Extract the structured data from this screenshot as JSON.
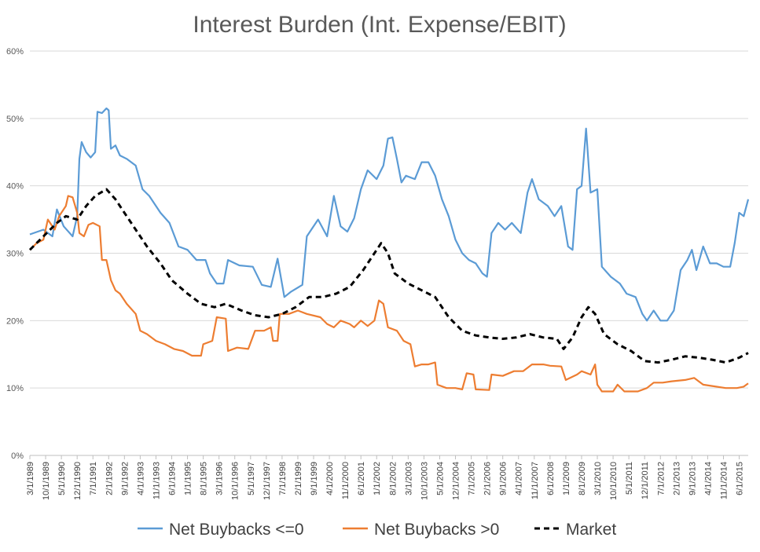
{
  "chart_data": {
    "type": "line",
    "title": "Interest Burden (Int. Expense/EBIT)",
    "xlabel": "",
    "ylabel": "",
    "ylim": [
      0,
      60
    ],
    "y_ticks": [
      "0%",
      "10%",
      "20%",
      "30%",
      "40%",
      "50%",
      "60%"
    ],
    "y_tick_values": [
      0,
      10,
      20,
      30,
      40,
      50,
      60
    ],
    "x_ticks": [
      "3/1/1989",
      "10/1/1989",
      "5/1/1990",
      "12/1/1990",
      "7/1/1991",
      "2/1/1992",
      "9/1/1992",
      "4/1/1993",
      "11/1/1993",
      "6/1/1994",
      "1/1/1995",
      "8/1/1995",
      "3/1/1996",
      "10/1/1996",
      "5/1/1997",
      "12/1/1997",
      "7/1/1998",
      "2/1/1999",
      "9/1/1999",
      "4/1/2000",
      "11/1/2000",
      "6/1/2001",
      "1/1/2002",
      "8/1/2002",
      "3/1/2003",
      "10/1/2003",
      "5/1/2004",
      "12/1/2004",
      "7/1/2005",
      "2/1/2006",
      "9/1/2006",
      "4/1/2007",
      "11/1/2007",
      "6/1/2008",
      "1/1/2009",
      "8/1/2009",
      "3/1/2010",
      "10/1/2010",
      "5/1/2011",
      "12/1/2011",
      "7/1/2012",
      "2/1/2013",
      "9/1/2013",
      "4/1/2014",
      "11/1/2014",
      "6/1/2015"
    ],
    "x_range": [
      "3/1/1989",
      "10/1/2015"
    ],
    "grid": "horizontal",
    "legend_position": "bottom",
    "series": [
      {
        "name": "Net Buybacks <=0",
        "color": "#5B9BD5",
        "dash": "solid",
        "points": [
          [
            "3/1/1989",
            32.8
          ],
          [
            "9/1/1989",
            33.5
          ],
          [
            "1/1/1990",
            32.5
          ],
          [
            "3/1/1990",
            36.5
          ],
          [
            "6/1/1990",
            34
          ],
          [
            "10/1/1990",
            32.5
          ],
          [
            "12/1/1990",
            35.5
          ],
          [
            "1/1/1991",
            44
          ],
          [
            "2/1/1991",
            46.5
          ],
          [
            "4/1/1991",
            45
          ],
          [
            "6/1/1991",
            44.2
          ],
          [
            "8/1/1991",
            45
          ],
          [
            "9/1/1991",
            51
          ],
          [
            "11/1/1991",
            50.8
          ],
          [
            "1/1/1992",
            51.5
          ],
          [
            "2/1/1992",
            51.2
          ],
          [
            "3/1/1992",
            45.5
          ],
          [
            "5/1/1992",
            46
          ],
          [
            "7/1/1992",
            44.5
          ],
          [
            "10/1/1992",
            44
          ],
          [
            "2/1/1993",
            43
          ],
          [
            "5/1/1993",
            39.5
          ],
          [
            "8/1/1993",
            38.5
          ],
          [
            "1/1/1994",
            36
          ],
          [
            "5/1/1994",
            34.5
          ],
          [
            "9/1/1994",
            31
          ],
          [
            "1/1/1995",
            30.5
          ],
          [
            "5/1/1995",
            29
          ],
          [
            "9/1/1995",
            29
          ],
          [
            "11/1/1995",
            27
          ],
          [
            "2/1/1996",
            25.5
          ],
          [
            "5/1/1996",
            25.5
          ],
          [
            "7/1/1996",
            29
          ],
          [
            "12/1/1996",
            28.2
          ],
          [
            "6/1/1997",
            28
          ],
          [
            "10/1/1997",
            25.3
          ],
          [
            "2/1/1998",
            25
          ],
          [
            "5/1/1998",
            29.2
          ],
          [
            "8/1/1998",
            23.5
          ],
          [
            "11/1/1998",
            24.3
          ],
          [
            "4/1/1999",
            25.3
          ],
          [
            "6/1/1999",
            32.5
          ],
          [
            "11/1/1999",
            35
          ],
          [
            "3/1/2000",
            32.5
          ],
          [
            "6/1/2000",
            38.5
          ],
          [
            "9/1/2000",
            34
          ],
          [
            "12/1/2000",
            33.2
          ],
          [
            "3/1/2001",
            35.2
          ],
          [
            "6/1/2001",
            39.5
          ],
          [
            "9/1/2001",
            42.3
          ],
          [
            "1/1/2002",
            41
          ],
          [
            "4/1/2002",
            43
          ],
          [
            "6/1/2002",
            47
          ],
          [
            "8/1/2002",
            47.2
          ],
          [
            "10/1/2002",
            44
          ],
          [
            "12/1/2002",
            40.5
          ],
          [
            "2/1/2003",
            41.5
          ],
          [
            "6/1/2003",
            41
          ],
          [
            "9/1/2003",
            43.5
          ],
          [
            "12/1/2003",
            43.5
          ],
          [
            "3/1/2004",
            41.5
          ],
          [
            "6/1/2004",
            38
          ],
          [
            "9/1/2004",
            35.5
          ],
          [
            "12/1/2004",
            32
          ],
          [
            "3/1/2005",
            30
          ],
          [
            "6/1/2005",
            29
          ],
          [
            "9/1/2005",
            28.5
          ],
          [
            "12/1/2005",
            27
          ],
          [
            "2/1/2006",
            26.5
          ],
          [
            "4/1/2006",
            33
          ],
          [
            "7/1/2006",
            34.5
          ],
          [
            "10/1/2006",
            33.5
          ],
          [
            "1/1/2007",
            34.5
          ],
          [
            "5/1/2007",
            33
          ],
          [
            "8/1/2007",
            39
          ],
          [
            "10/1/2007",
            41
          ],
          [
            "1/1/2008",
            38
          ],
          [
            "5/1/2008",
            37
          ],
          [
            "8/1/2008",
            35.5
          ],
          [
            "11/1/2008",
            37
          ],
          [
            "2/1/2009",
            31
          ],
          [
            "4/1/2009",
            30.5
          ],
          [
            "6/1/2009",
            39.5
          ],
          [
            "8/1/2009",
            40
          ],
          [
            "10/1/2009",
            48.5
          ],
          [
            "12/1/2009",
            39
          ],
          [
            "3/1/2010",
            39.5
          ],
          [
            "5/1/2010",
            28
          ],
          [
            "9/1/2010",
            26.5
          ],
          [
            "1/1/2011",
            25.5
          ],
          [
            "4/1/2011",
            24
          ],
          [
            "8/1/2011",
            23.5
          ],
          [
            "11/1/2011",
            21
          ],
          [
            "1/1/2012",
            20
          ],
          [
            "4/1/2012",
            21.5
          ],
          [
            "7/1/2012",
            20
          ],
          [
            "10/1/2012",
            20
          ],
          [
            "1/1/2013",
            21.5
          ],
          [
            "4/1/2013",
            27.5
          ],
          [
            "7/1/2013",
            29
          ],
          [
            "9/1/2013",
            30.5
          ],
          [
            "11/1/2013",
            27.5
          ],
          [
            "2/1/2014",
            31
          ],
          [
            "5/1/2014",
            28.5
          ],
          [
            "8/1/2014",
            28.5
          ],
          [
            "11/1/2014",
            28
          ],
          [
            "2/1/2015",
            28
          ],
          [
            "4/1/2015",
            31.5
          ],
          [
            "6/1/2015",
            36
          ],
          [
            "8/1/2015",
            35.5
          ],
          [
            "10/1/2015",
            38
          ]
        ]
      },
      {
        "name": "Net Buybacks >0",
        "color": "#ED7D31",
        "dash": "solid",
        "points": [
          [
            "3/1/1989",
            30.5
          ],
          [
            "6/1/1989",
            31.5
          ],
          [
            "9/1/1989",
            32
          ],
          [
            "11/1/1989",
            35
          ],
          [
            "2/1/1990",
            33.5
          ],
          [
            "4/1/1990",
            35.5
          ],
          [
            "7/1/1990",
            37
          ],
          [
            "8/1/1990",
            38.5
          ],
          [
            "10/1/1990",
            38.3
          ],
          [
            "12/1/1990",
            36
          ],
          [
            "1/1/1991",
            33
          ],
          [
            "3/1/1991",
            32.5
          ],
          [
            "5/1/1991",
            34.2
          ],
          [
            "7/1/1991",
            34.5
          ],
          [
            "10/1/1991",
            34
          ],
          [
            "11/1/1991",
            29
          ],
          [
            "1/1/1992",
            29
          ],
          [
            "3/1/1992",
            26
          ],
          [
            "5/1/1992",
            24.5
          ],
          [
            "7/1/1992",
            24
          ],
          [
            "10/1/1992",
            22.5
          ],
          [
            "2/1/1993",
            21
          ],
          [
            "4/1/1993",
            18.5
          ],
          [
            "7/1/1993",
            18
          ],
          [
            "11/1/1993",
            17
          ],
          [
            "3/1/1994",
            16.5
          ],
          [
            "7/1/1994",
            15.8
          ],
          [
            "11/1/1994",
            15.5
          ],
          [
            "3/1/1995",
            14.8
          ],
          [
            "7/1/1995",
            14.8
          ],
          [
            "8/1/1995",
            16.5
          ],
          [
            "12/1/1995",
            17
          ],
          [
            "2/1/1996",
            20.5
          ],
          [
            "6/1/1996",
            20.3
          ],
          [
            "7/1/1996",
            15.5
          ],
          [
            "11/1/1996",
            16
          ],
          [
            "4/1/1997",
            15.8
          ],
          [
            "7/1/1997",
            18.5
          ],
          [
            "11/1/1997",
            18.5
          ],
          [
            "2/1/1998",
            19
          ],
          [
            "3/1/1998",
            17
          ],
          [
            "5/1/1998",
            17
          ],
          [
            "6/1/1998",
            21
          ],
          [
            "10/1/1998",
            21
          ],
          [
            "2/1/1999",
            21.5
          ],
          [
            "6/1/1999",
            21
          ],
          [
            "12/1/1999",
            20.5
          ],
          [
            "3/1/2000",
            19.5
          ],
          [
            "6/1/2000",
            19
          ],
          [
            "9/1/2000",
            20
          ],
          [
            "1/1/2001",
            19.5
          ],
          [
            "3/1/2001",
            19
          ],
          [
            "6/1/2001",
            20
          ],
          [
            "9/1/2001",
            19.2
          ],
          [
            "12/1/2001",
            20
          ],
          [
            "2/1/2002",
            23
          ],
          [
            "4/1/2002",
            22.5
          ],
          [
            "6/1/2002",
            19
          ],
          [
            "10/1/2002",
            18.5
          ],
          [
            "1/1/2003",
            17
          ],
          [
            "4/1/2003",
            16.5
          ],
          [
            "6/1/2003",
            13.2
          ],
          [
            "9/1/2003",
            13.5
          ],
          [
            "12/1/2003",
            13.5
          ],
          [
            "3/1/2004",
            13.8
          ],
          [
            "4/1/2004",
            10.5
          ],
          [
            "8/1/2004",
            10
          ],
          [
            "12/1/2004",
            10
          ],
          [
            "3/1/2005",
            9.8
          ],
          [
            "5/1/2005",
            12.2
          ],
          [
            "8/1/2005",
            12
          ],
          [
            "9/1/2005",
            9.8
          ],
          [
            "3/1/2006",
            9.7
          ],
          [
            "4/1/2006",
            12
          ],
          [
            "9/1/2006",
            11.8
          ],
          [
            "2/1/2007",
            12.5
          ],
          [
            "6/1/2007",
            12.5
          ],
          [
            "10/1/2007",
            13.5
          ],
          [
            "3/1/2008",
            13.5
          ],
          [
            "6/1/2008",
            13.3
          ],
          [
            "11/1/2008",
            13.2
          ],
          [
            "1/1/2009",
            11.2
          ],
          [
            "6/1/2009",
            12
          ],
          [
            "8/1/2009",
            12.5
          ],
          [
            "12/1/2009",
            12
          ],
          [
            "2/1/2010",
            13.5
          ],
          [
            "3/1/2010",
            10.5
          ],
          [
            "5/1/2010",
            9.5
          ],
          [
            "10/1/2010",
            9.5
          ],
          [
            "12/1/2010",
            10.5
          ],
          [
            "3/1/2011",
            9.5
          ],
          [
            "9/1/2011",
            9.5
          ],
          [
            "1/1/2012",
            10
          ],
          [
            "4/1/2012",
            10.8
          ],
          [
            "8/1/2012",
            10.8
          ],
          [
            "12/1/2012",
            11
          ],
          [
            "6/1/2013",
            11.2
          ],
          [
            "10/1/2013",
            11.5
          ],
          [
            "2/1/2014",
            10.5
          ],
          [
            "6/1/2014",
            10.3
          ],
          [
            "12/1/2014",
            10
          ],
          [
            "5/1/2015",
            10
          ],
          [
            "8/1/2015",
            10.2
          ],
          [
            "10/1/2015",
            10.7
          ]
        ]
      },
      {
        "name": "Market",
        "color": "#000000",
        "dash": "dashed",
        "points": [
          [
            "3/1/1989",
            30.5
          ],
          [
            "9/1/1989",
            32.5
          ],
          [
            "3/1/1990",
            34.5
          ],
          [
            "7/1/1990",
            35.5
          ],
          [
            "12/1/1990",
            35
          ],
          [
            "4/1/1991",
            37
          ],
          [
            "8/1/1991",
            38.5
          ],
          [
            "1/1/1992",
            39.5
          ],
          [
            "5/1/1992",
            38
          ],
          [
            "9/1/1992",
            36
          ],
          [
            "2/1/1993",
            33.5
          ],
          [
            "7/1/1993",
            31
          ],
          [
            "1/1/1994",
            28.5
          ],
          [
            "6/1/1994",
            26
          ],
          [
            "1/1/1995",
            24
          ],
          [
            "7/1/1995",
            22.5
          ],
          [
            "1/1/1996",
            22
          ],
          [
            "6/1/1996",
            22.5
          ],
          [
            "1/1/1997",
            21.5
          ],
          [
            "7/1/1997",
            20.8
          ],
          [
            "1/1/1998",
            20.5
          ],
          [
            "7/1/1998",
            21
          ],
          [
            "1/1/1999",
            22
          ],
          [
            "7/1/1999",
            23.5
          ],
          [
            "1/1/2000",
            23.5
          ],
          [
            "7/1/2000",
            24
          ],
          [
            "1/1/2001",
            25
          ],
          [
            "7/1/2001",
            27.5
          ],
          [
            "12/1/2001",
            30
          ],
          [
            "3/1/2002",
            31.5
          ],
          [
            "6/1/2002",
            30
          ],
          [
            "9/1/2002",
            27
          ],
          [
            "3/1/2003",
            25.5
          ],
          [
            "9/1/2003",
            24.5
          ],
          [
            "3/1/2004",
            23.5
          ],
          [
            "9/1/2004",
            20.5
          ],
          [
            "3/1/2005",
            18.5
          ],
          [
            "9/1/2005",
            17.8
          ],
          [
            "3/1/2006",
            17.5
          ],
          [
            "9/1/2006",
            17.3
          ],
          [
            "3/1/2007",
            17.5
          ],
          [
            "9/1/2007",
            18
          ],
          [
            "3/1/2008",
            17.5
          ],
          [
            "9/1/2008",
            17.3
          ],
          [
            "12/1/2008",
            15.8
          ],
          [
            "4/1/2009",
            17.5
          ],
          [
            "8/1/2009",
            20.5
          ],
          [
            "11/1/2009",
            22
          ],
          [
            "2/1/2010",
            21
          ],
          [
            "6/1/2010",
            18
          ],
          [
            "12/1/2010",
            16.5
          ],
          [
            "6/1/2011",
            15.5
          ],
          [
            "12/1/2011",
            14
          ],
          [
            "6/1/2012",
            13.8
          ],
          [
            "12/1/2012",
            14.2
          ],
          [
            "6/1/2013",
            14.7
          ],
          [
            "12/1/2013",
            14.5
          ],
          [
            "6/1/2014",
            14.2
          ],
          [
            "12/1/2014",
            13.8
          ],
          [
            "6/1/2015",
            14.5
          ],
          [
            "10/1/2015",
            15.2
          ]
        ]
      }
    ]
  }
}
